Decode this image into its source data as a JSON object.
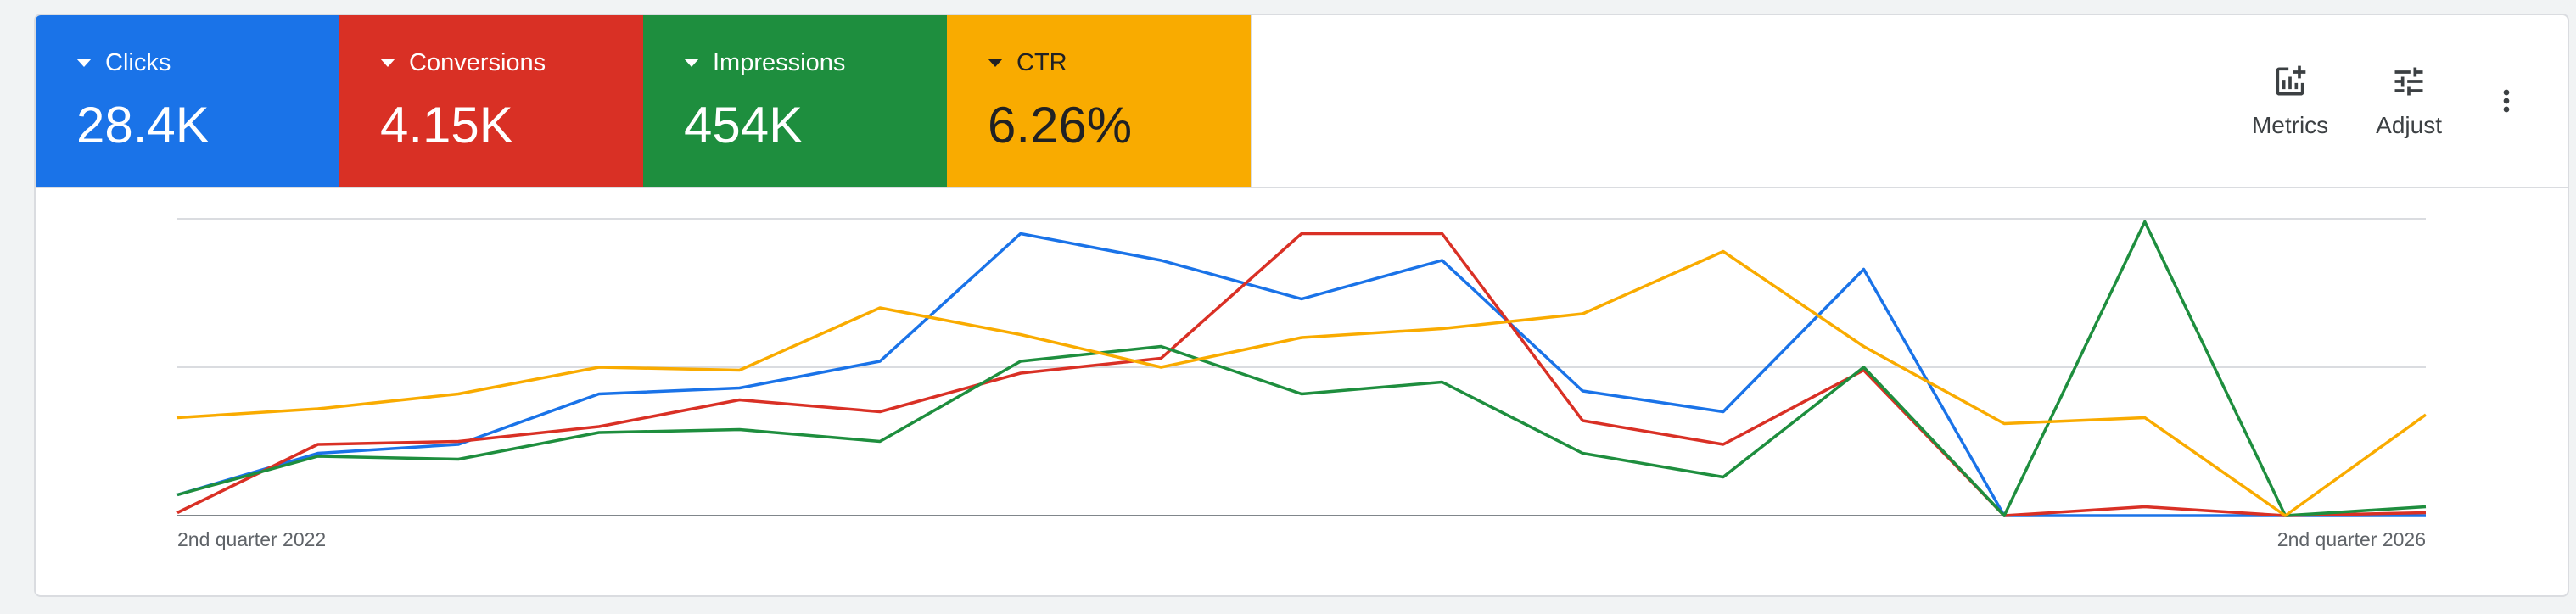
{
  "scorecards": [
    {
      "label": "Clicks",
      "value": "28.4K",
      "color": "#1a73e8"
    },
    {
      "label": "Conversions",
      "value": "4.15K",
      "color": "#d93025"
    },
    {
      "label": "Impressions",
      "value": "454K",
      "color": "#1e8e3e"
    },
    {
      "label": "CTR",
      "value": "6.26%",
      "color": "#f9ab00"
    }
  ],
  "toolbar": {
    "metrics_label": "Metrics",
    "adjust_label": "Adjust",
    "metrics_icon": "add-chart-icon",
    "adjust_icon": "tune-icon",
    "more_icon": "more-vert-icon"
  },
  "chart_data": {
    "type": "line",
    "x_tick_labels": {
      "start": "2nd quarter 2022",
      "end": "2nd quarter 2026"
    },
    "ylim": [
      0,
      100
    ],
    "grid": true,
    "series": [
      {
        "name": "Clicks",
        "color": "#1a73e8",
        "values": [
          7,
          21,
          24,
          41,
          43,
          52,
          95,
          86,
          73,
          86,
          42,
          35,
          83,
          0,
          0,
          0,
          0
        ]
      },
      {
        "name": "Conversions",
        "color": "#d93025",
        "values": [
          1,
          24,
          25,
          30,
          39,
          35,
          48,
          53,
          95,
          95,
          32,
          24,
          49,
          0,
          3,
          0,
          1
        ]
      },
      {
        "name": "Impressions",
        "color": "#1e8e3e",
        "values": [
          7,
          20,
          19,
          28,
          29,
          25,
          52,
          57,
          41,
          45,
          21,
          13,
          50,
          0,
          99,
          0,
          3
        ]
      },
      {
        "name": "CTR",
        "color": "#f9ab00",
        "values": [
          33,
          36,
          41,
          50,
          49,
          70,
          61,
          50,
          60,
          63,
          68,
          89,
          57,
          31,
          33,
          0,
          34
        ]
      }
    ]
  }
}
